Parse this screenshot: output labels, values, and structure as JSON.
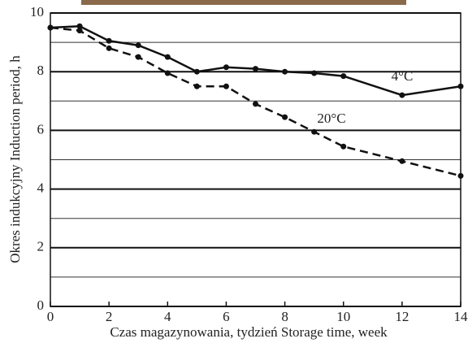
{
  "chart_data": {
    "type": "line",
    "x_label": "Czas magazynowania, tydzień Storage time, week",
    "y_label": "Okres indukcyjny Induction period, h",
    "x": [
      0,
      1,
      2,
      3,
      4,
      5,
      6,
      7,
      8,
      9,
      10,
      12,
      14
    ],
    "series": [
      {
        "name": "4°C",
        "color": "#111111",
        "dash": false,
        "values": [
          9.5,
          9.55,
          9.05,
          8.9,
          8.5,
          8.0,
          8.15,
          8.1,
          8.0,
          7.95,
          7.85,
          7.2,
          7.5
        ]
      },
      {
        "name": "20°C",
        "color": "#111111",
        "dash": true,
        "values": [
          9.5,
          9.4,
          8.8,
          8.5,
          7.95,
          7.5,
          7.5,
          6.9,
          6.45,
          5.95,
          5.45,
          4.95,
          4.45
        ]
      }
    ],
    "xlim": [
      0,
      14
    ],
    "xticks": [
      0,
      2,
      4,
      6,
      8,
      10,
      12,
      14
    ],
    "ylim": [
      0,
      10
    ],
    "yticks": [
      0,
      2,
      4,
      6,
      8,
      10
    ],
    "minor_yticks": [
      1,
      3,
      5,
      7,
      9
    ],
    "grid": true
  }
}
